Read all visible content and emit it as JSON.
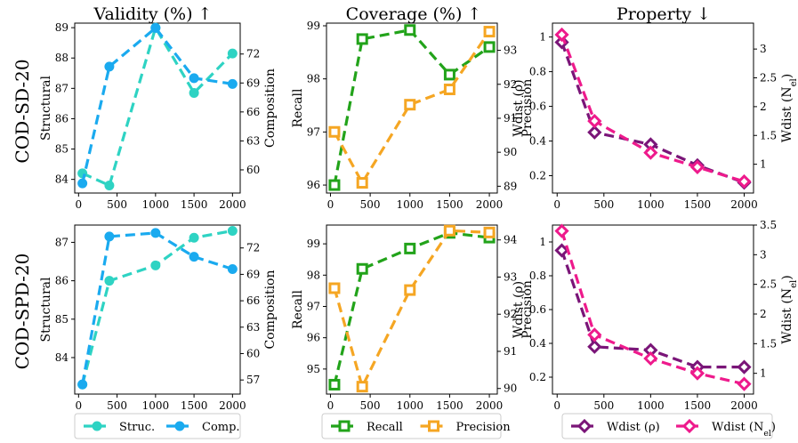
{
  "columns": [
    "Validity (%) ↑",
    "Coverage (%) ↑",
    "Property ↓"
  ],
  "rows": [
    "COD-SD-20",
    "COD-SPD-20"
  ],
  "colors": {
    "struc": "#2ed3c3",
    "comp": "#1aaaef",
    "recall": "#22a31a",
    "precision": "#f5a623",
    "wdist_rho": "#7a1578",
    "wdist_nel": "#ee1a8c"
  },
  "legends": [
    [
      {
        "label": "Struc.",
        "color": "#2ed3c3",
        "marker": "circle"
      },
      {
        "label": "Comp.",
        "color": "#1aaaef",
        "marker": "circle"
      }
    ],
    [
      {
        "label": "Recall",
        "color": "#22a31a",
        "marker": "square"
      },
      {
        "label": "Precision",
        "color": "#f5a623",
        "marker": "square"
      }
    ],
    [
      {
        "label": "Wdist (ρ)",
        "color": "#7a1578",
        "marker": "diamond"
      },
      {
        "label": "Wdist (N_el)",
        "color": "#ee1a8c",
        "marker": "diamond"
      }
    ]
  ],
  "chart_data": [
    {
      "type": "line",
      "row": "COD-SD-20",
      "column": "Validity (%) ↑",
      "x": [
        50,
        400,
        1000,
        1500,
        2000
      ],
      "xticks": [
        0,
        500,
        1000,
        1500,
        2000
      ],
      "xlim": [
        -50,
        2100
      ],
      "left": {
        "label": "Structural",
        "ylim": [
          83.55,
          89.15
        ],
        "ticks": [
          84,
          85,
          86,
          87,
          88,
          89
        ]
      },
      "right": {
        "label": "Composition",
        "ylim": [
          57.6,
          75.2
        ],
        "ticks": [
          60,
          63,
          66,
          69,
          72
        ]
      },
      "series": [
        {
          "name": "Struc.",
          "axis": "left",
          "color": "#2ed3c3",
          "marker": "circle",
          "values": [
            84.2,
            83.8,
            89.0,
            86.85,
            88.15
          ]
        },
        {
          "name": "Comp.",
          "axis": "right",
          "color": "#1aaaef",
          "marker": "circle",
          "values": [
            58.6,
            70.7,
            74.7,
            69.5,
            68.9
          ]
        }
      ]
    },
    {
      "type": "line",
      "row": "COD-SD-20",
      "column": "Coverage (%) ↑",
      "x": [
        50,
        400,
        1000,
        1500,
        2000
      ],
      "xticks": [
        0,
        500,
        1000,
        1500,
        2000
      ],
      "xlim": [
        -50,
        2100
      ],
      "left": {
        "label": "Recall",
        "ylim": [
          95.85,
          99.05
        ],
        "ticks": [
          96,
          97,
          98,
          99
        ]
      },
      "right": {
        "label": "Precision",
        "ylim": [
          88.8,
          93.8
        ],
        "ticks": [
          89,
          90,
          91,
          92,
          93
        ]
      },
      "series": [
        {
          "name": "Recall",
          "axis": "left",
          "color": "#22a31a",
          "marker": "square",
          "values": [
            96.0,
            98.75,
            98.92,
            98.08,
            98.6
          ]
        },
        {
          "name": "Precision",
          "axis": "right",
          "color": "#f5a623",
          "marker": "square",
          "values": [
            90.6,
            89.1,
            91.4,
            91.85,
            93.55
          ]
        }
      ]
    },
    {
      "type": "line",
      "row": "COD-SD-20",
      "column": "Property ↓",
      "x": [
        50,
        400,
        1000,
        1500,
        2000
      ],
      "xticks": [
        0,
        500,
        1000,
        1500,
        2000
      ],
      "xlim": [
        -50,
        2100
      ],
      "left": {
        "label": "Wdist (ρ)",
        "ylim": [
          0.1,
          1.08
        ],
        "ticks": [
          0.2,
          0.4,
          0.6,
          0.8,
          1.0
        ]
      },
      "right": {
        "label": "Wdist (N_el)",
        "ylim": [
          0.5,
          3.45
        ],
        "ticks": [
          1.0,
          1.5,
          2.0,
          2.5,
          3.0
        ]
      },
      "series": [
        {
          "name": "Wdist (ρ)",
          "axis": "left",
          "color": "#7a1578",
          "marker": "diamond",
          "values": [
            0.97,
            0.45,
            0.38,
            0.26,
            0.16
          ]
        },
        {
          "name": "Wdist (N_el)",
          "axis": "right",
          "color": "#ee1a8c",
          "marker": "diamond",
          "values": [
            3.25,
            1.75,
            1.2,
            0.95,
            0.7
          ]
        }
      ]
    },
    {
      "type": "line",
      "row": "COD-SPD-20",
      "column": "Validity (%) ↑",
      "x": [
        50,
        400,
        1000,
        1500,
        2000
      ],
      "xticks": [
        0,
        500,
        1000,
        1500,
        2000
      ],
      "xlim": [
        -50,
        2100
      ],
      "left": {
        "label": "Structural",
        "ylim": [
          83.05,
          87.45
        ],
        "ticks": [
          84,
          85,
          86,
          87
        ]
      },
      "right": {
        "label": "Composition",
        "ylim": [
          55.4,
          74.6
        ],
        "ticks": [
          57,
          60,
          63,
          66,
          69,
          72
        ]
      },
      "series": [
        {
          "name": "Struc.",
          "axis": "left",
          "color": "#2ed3c3",
          "marker": "circle",
          "values": [
            83.3,
            86.0,
            86.4,
            87.12,
            87.3
          ]
        },
        {
          "name": "Comp.",
          "axis": "right",
          "color": "#1aaaef",
          "marker": "circle",
          "values": [
            56.5,
            73.3,
            73.7,
            71.0,
            69.6
          ]
        }
      ]
    },
    {
      "type": "line",
      "row": "COD-SPD-20",
      "column": "Coverage (%) ↑",
      "x": [
        50,
        400,
        1000,
        1500,
        2000
      ],
      "xticks": [
        0,
        500,
        1000,
        1500,
        2000
      ],
      "xlim": [
        -50,
        2100
      ],
      "left": {
        "label": "Recall",
        "ylim": [
          94.2,
          99.6
        ],
        "ticks": [
          95,
          96,
          97,
          98,
          99
        ]
      },
      "right": {
        "label": "Precision",
        "ylim": [
          89.85,
          94.4
        ],
        "ticks": [
          90,
          91,
          92,
          93,
          94
        ]
      },
      "series": [
        {
          "name": "Recall",
          "axis": "left",
          "color": "#22a31a",
          "marker": "square",
          "values": [
            94.5,
            98.2,
            98.85,
            99.35,
            99.2
          ]
        },
        {
          "name": "Precision",
          "axis": "right",
          "color": "#f5a623",
          "marker": "square",
          "values": [
            92.7,
            90.05,
            92.65,
            94.25,
            94.2
          ]
        }
      ]
    },
    {
      "type": "line",
      "row": "COD-SPD-20",
      "column": "Property ↓",
      "x": [
        50,
        400,
        1000,
        1500,
        2000
      ],
      "xticks": [
        0,
        500,
        1000,
        1500,
        2000
      ],
      "xlim": [
        -50,
        2100
      ],
      "left": {
        "label": "Wdist (ρ)",
        "ylim": [
          0.1,
          1.1
        ],
        "ticks": [
          0.2,
          0.4,
          0.6,
          0.8,
          1.0
        ]
      },
      "right": {
        "label": "Wdist (N_el)",
        "ylim": [
          0.65,
          3.5
        ],
        "ticks": [
          1.0,
          1.5,
          2.0,
          2.5,
          3.0,
          3.5
        ]
      },
      "series": [
        {
          "name": "Wdist (ρ)",
          "axis": "left",
          "color": "#7a1578",
          "marker": "diamond",
          "values": [
            0.95,
            0.38,
            0.36,
            0.26,
            0.26
          ]
        },
        {
          "name": "Wdist (N_el)",
          "axis": "right",
          "color": "#ee1a8c",
          "marker": "diamond",
          "values": [
            3.4,
            1.65,
            1.25,
            1.0,
            0.82
          ]
        }
      ]
    }
  ]
}
